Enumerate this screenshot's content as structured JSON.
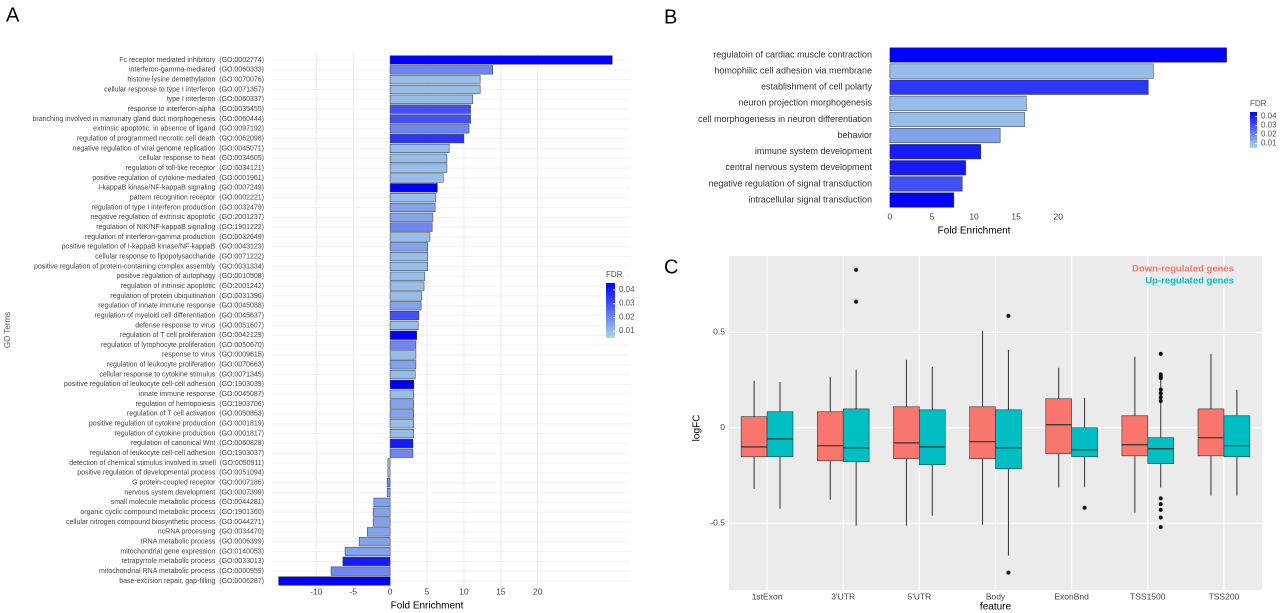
{
  "chart_data": [
    {
      "type": "hbar",
      "label": "A",
      "xlabel": "Fold Enrichment",
      "ylabel": "GO Terms",
      "categories": [
        "Fc receptor mediated inhibitory  (GO:0002774)",
        "interferon-gamma-mediated  (GO:0060333)",
        "histone lysine demethylation  (GO:0070076)",
        "cellular response to type I interferon  (GO:0071357)",
        "type I interferon  (GO:0060337)",
        "response to interferon-alpha  (GO:0035455)",
        "branching involved in mammary gland duct morphogenesis  (GO:0060444)",
        "extrinsic apoptotic  in absence of ligand  (GO:0097192)",
        "regulation of programmed necrotic cell death  (GO:0062098)",
        "negative regulation of viral genome replication  (GO:0045071)",
        "cellular response to heat  (GO:0034605)",
        "regulation of toll-like receptor  (GO:0034121)",
        "positive regulation of cytokine-mediated  (GO:0001961)",
        "I-kappaB kinase/NF-kappaB signaling  (GO:0007249)",
        "pattern recognition receptor  (GO:0002221)",
        "regulation of type I interferon production  (GO:0032479)",
        "negative regulation of extrinsic apoptotic  (GO:2001237)",
        "regulation of NIK/NF-kappaB signaling  (GO:1901222)",
        "regulation of interferon-gamma production  (GO:0032649)",
        "positive regulation of I-kappaB kinase/NF-kappaB  (GO:0043123)",
        "cellular response to lipopolysaccharide  (GO:0071222)",
        "positive regulation of protein-containing complex assembly  (GO:0031334)",
        "positive regulation of autophagy  (GO:0010508)",
        "regulation of intrinsic apoptotic  (GO:2001242)",
        "regulation of protein ubiquitination  (GO:0031396)",
        "regulation of innate immune response  (GO:0045088)",
        "regulation of myeloid cell differentiation  (GO:0045637)",
        "defense response to virus  (GO:0051607)",
        "regulation of T cell proliferation  (GO:0042129)",
        "regulation of lymphocyte proliferation  (GO:0050670)",
        "response to virus  (GO:0009615)",
        "regulation of leukocyte proliferation  (GO:0070663)",
        "cellular response to cytokine stimulus  (GO:0071345)",
        "positive regulation of leukocyte cell-cell adhesion  (GO:1903039)",
        "innate immune response  (GO:0045087)",
        "regulation of hemopoiesis  (GO:1903706)",
        "regulation of T cell activation  (GO:0050863)",
        "positive regulation of cytokine production  (GO:0001819)",
        "regulation of cytokine production  (GO:0001817)",
        "regulation of canonical Wnt  (GO:0060828)",
        "regulation of leukocyte cell-cell adhesion  (GO:1903037)",
        "detection of chemical stimulus involved in smell  (GO:0050911)",
        "positive regulation of developmental process  (GO:0051094)",
        "G protein-coupled receptor  (GO:0007186)",
        "nervous system development  (GO:0007399)",
        "small molecule metabolic process  (GO:0044281)",
        "organic cyclic compound metabolic process  (GO:1901360)",
        "cellular nitrogen compound biosynthetic process  (GO:0044271)",
        "ncRNA processing  (GO:0034470)",
        "tRNA metabolic process  (GO:0006399)",
        "mitochondrial gene expression  (GO:0140053)",
        "tetrapyrrole metabolic process  (GO:0033013)",
        "mitochondrial RNA metabolic process  (GO:0000959)",
        "base-excision repair, gap-filling  (GO:0006287)"
      ],
      "values": [
        30.1,
        13.9,
        12.2,
        12.2,
        11.2,
        10.9,
        10.9,
        10.7,
        10.0,
        8.0,
        7.7,
        7.7,
        7.2,
        6.4,
        6.2,
        6.1,
        5.8,
        5.7,
        5.4,
        5.1,
        5.1,
        5.1,
        4.7,
        4.6,
        4.3,
        4.2,
        3.9,
        3.8,
        3.6,
        3.5,
        3.5,
        3.5,
        3.4,
        3.2,
        3.2,
        3.2,
        3.2,
        3.2,
        3.2,
        3.1,
        3.1,
        -0.3,
        -0.3,
        -0.4,
        -0.4,
        -2.2,
        -2.3,
        -2.3,
        -3.1,
        -4.2,
        -6.1,
        -6.4,
        -8.0,
        -15.1
      ],
      "fdr": [
        0.045,
        0.02,
        0.01,
        0.01,
        0.01,
        0.03,
        0.03,
        0.02,
        0.035,
        0.01,
        0.01,
        0.01,
        0.01,
        0.045,
        0.01,
        0.015,
        0.015,
        0.02,
        0.01,
        0.015,
        0.01,
        0.01,
        0.01,
        0.01,
        0.01,
        0.015,
        0.03,
        0.01,
        0.045,
        0.02,
        0.01,
        0.015,
        0.01,
        0.045,
        0.01,
        0.015,
        0.015,
        0.01,
        0.01,
        0.04,
        0.02,
        0.01,
        0.01,
        0.02,
        0.015,
        0.015,
        0.015,
        0.015,
        0.015,
        0.015,
        0.015,
        0.04,
        0.02,
        0.045
      ],
      "color_scale": {
        "name": "FDR",
        "low": "#add8e6",
        "high": "#0000ff",
        "lim": [
          0.005,
          0.045
        ],
        "ticks": [
          0.01,
          0.02,
          0.03,
          0.04
        ]
      },
      "xlim": [
        -16,
        32.5
      ],
      "xticks": [
        -10,
        -5,
        0,
        5,
        10,
        15,
        20
      ],
      "grid": true
    },
    {
      "type": "hbar",
      "label": "B",
      "xlabel": "Fold Enrichment",
      "categories": [
        "regulatoin of cardiac muscle contraction",
        "homophilic cell adhesion via membrane",
        "establishment of cell polarty",
        "neuron projection morphogenesis",
        "cell morphogenesis in neuron differentiation",
        "behavior",
        "immune system development",
        "central nervous system development",
        "negative regulation of signal transduction",
        "intracellular signal transduction"
      ],
      "values": [
        40,
        31.3,
        30.7,
        16.2,
        16.0,
        13.1,
        10.8,
        9.0,
        8.6,
        7.6
      ],
      "fdr": [
        0.045,
        0.01,
        0.035,
        0.01,
        0.01,
        0.015,
        0.04,
        0.04,
        0.03,
        0.045
      ],
      "color_scale": {
        "name": "FDR",
        "low": "#add8e6",
        "high": "#0000ff",
        "lim": [
          0.005,
          0.045
        ],
        "ticks": [
          0.01,
          0.02,
          0.03,
          0.04
        ]
      },
      "xlim": [
        -0.7,
        41
      ],
      "xticks": [
        0,
        5,
        10,
        15,
        20
      ],
      "grid": false
    },
    {
      "type": "box",
      "label": "C",
      "xlabel": "feature",
      "ylabel": "logFC",
      "categories": [
        "1stExon",
        "3'UTR",
        "5'UTR",
        "Body",
        "ExonBnd",
        "TSS1500",
        "TSS200"
      ],
      "series": [
        {
          "name": "Down-regulated genes",
          "color": "#f8766d",
          "q1": [
            -0.152,
            -0.173,
            -0.162,
            -0.162,
            -0.136,
            -0.147,
            -0.147
          ],
          "median": [
            -0.1,
            -0.094,
            -0.079,
            -0.073,
            0.016,
            -0.089,
            -0.052
          ],
          "q3": [
            0.058,
            0.084,
            0.11,
            0.11,
            0.152,
            0.063,
            0.099
          ],
          "low": [
            -0.32,
            -0.377,
            -0.513,
            -0.508,
            -0.314,
            -0.445,
            -0.356
          ],
          "high": [
            0.246,
            0.267,
            0.356,
            0.508,
            0.314,
            0.372,
            0.387
          ],
          "outliers": [
            [],
            [],
            [],
            [],
            [],
            [],
            []
          ]
        },
        {
          "name": "Up-regulated genes",
          "color": "#00bfc4",
          "q1": [
            -0.152,
            -0.178,
            -0.194,
            -0.215,
            -0.152,
            -0.188,
            -0.152
          ],
          "median": [
            -0.058,
            -0.105,
            -0.1,
            -0.105,
            -0.115,
            -0.11,
            -0.094
          ],
          "q3": [
            0.084,
            0.099,
            0.094,
            0.094,
            0.0,
            -0.052,
            0.063
          ],
          "low": [
            -0.424,
            -0.513,
            -0.461,
            -0.67,
            -0.309,
            -0.314,
            -0.356
          ],
          "high": [
            0.24,
            0.304,
            0.319,
            0.408,
            0.157,
            0.251,
            0.199
          ],
          "outliers": [
            [],
            [
              0.827,
              0.66
            ],
            [],
            [
              0.586,
              -0.759
            ],
            [
              -0.419
            ],
            [
              0.387,
              0.28,
              0.27,
              0.26,
              0.2,
              0.18,
              0.16,
              0.14,
              -0.37,
              -0.4,
              -0.43,
              -0.47,
              -0.52
            ],
            []
          ]
        }
      ],
      "ylim": [
        -0.85,
        0.9
      ],
      "yticks": [
        -0.5,
        0.0,
        0.5
      ],
      "grid": true,
      "legend": "top-right"
    }
  ]
}
